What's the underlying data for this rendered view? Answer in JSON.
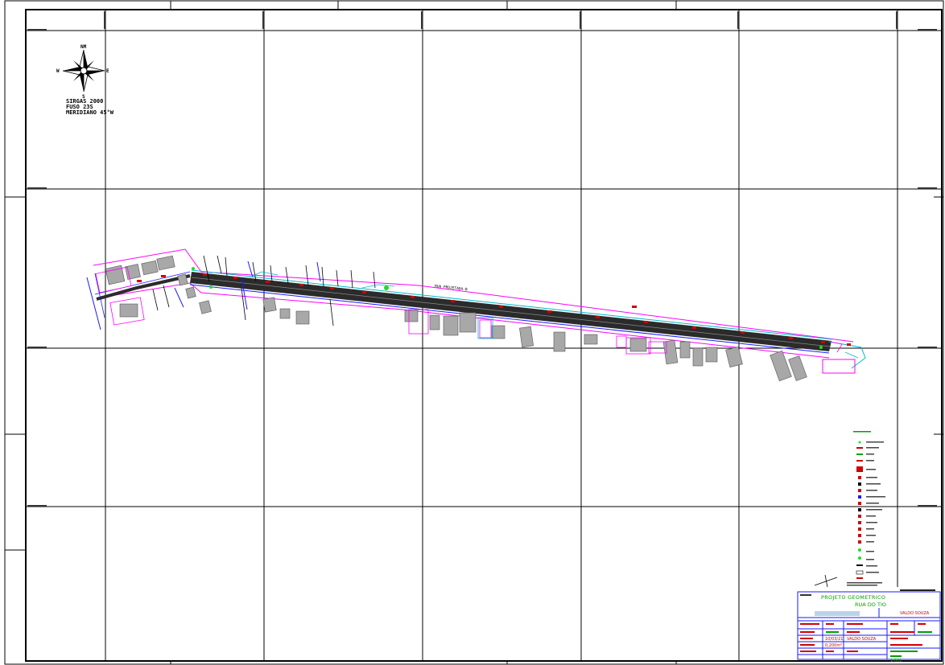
{
  "north_arrow": {
    "n": "NM",
    "e": "E",
    "w": "W",
    "s": "S"
  },
  "crs": {
    "line1": "SIRGAS 2000",
    "line2": "FUSO 23S",
    "line3": "MERIDIANO 45°W"
  },
  "street_label": "RUA PROJETADA-B",
  "title_block": {
    "project_title": "PROJETO GEOMETRICO",
    "street": "RUA DO TIO",
    "responsible": "VALDO SOUZA",
    "date": "10/03/21",
    "area": "0,200m²",
    "sheet": "1/001"
  },
  "colors": {
    "frame": "#000000",
    "road": "#2b2b2b",
    "lot_line": "#ff00ff",
    "building": "#8a8a8a",
    "curb": "#1a1aff",
    "title_green": "#00a000",
    "title_red": "#d00000",
    "marker_green": "#22dd22",
    "cyan": "#00b8c8"
  }
}
